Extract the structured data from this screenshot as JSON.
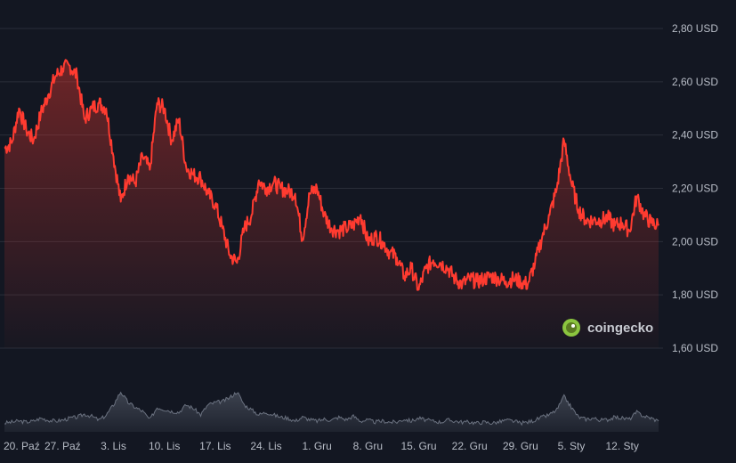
{
  "chart_data": {
    "type": "area",
    "title": "",
    "xlabel": "",
    "ylabel": "",
    "ylim": [
      1.58,
      2.85
    ],
    "y_ticks": [
      "2,80 USD",
      "2,60 USD",
      "2,40 USD",
      "2,20 USD",
      "2,00 USD",
      "1,80 USD",
      "1,60 USD"
    ],
    "y_tick_values": [
      2.8,
      2.6,
      2.4,
      2.2,
      2.0,
      1.8,
      1.6
    ],
    "x_ticks": [
      "20. Paź",
      "27. Paź",
      "3. Lis",
      "10. Lis",
      "17. Lis",
      "24. Lis",
      "1. Gru",
      "8. Gru",
      "15. Gru",
      "22. Gru",
      "29. Gru",
      "5. Sty",
      "12. Sty"
    ],
    "x_range_days": [
      -1,
      89
    ],
    "grid": true,
    "legend": "none",
    "series": [
      {
        "x": [
          -1,
          0,
          1,
          2,
          3,
          4,
          5,
          6,
          7,
          8,
          9,
          10,
          11,
          12,
          13,
          14,
          15,
          16,
          17,
          18,
          19,
          20,
          21,
          22,
          23,
          24,
          25,
          26,
          27,
          28,
          29,
          30,
          31,
          32,
          33,
          34,
          35,
          36,
          37,
          38,
          39,
          40,
          41,
          42,
          43,
          44,
          45,
          46,
          47,
          48,
          49,
          50,
          51,
          52,
          53,
          54,
          55,
          56,
          57,
          58,
          59,
          60,
          61,
          62,
          63,
          64,
          65,
          66,
          67,
          68,
          69,
          70,
          71,
          72,
          73,
          74,
          75,
          76,
          77,
          78,
          79,
          80,
          81,
          82,
          83,
          84,
          85,
          86,
          87,
          88,
          89
        ],
        "values": [
          2.35,
          2.37,
          2.5,
          2.42,
          2.38,
          2.48,
          2.55,
          2.62,
          2.65,
          2.66,
          2.62,
          2.46,
          2.5,
          2.52,
          2.5,
          2.32,
          2.15,
          2.25,
          2.22,
          2.32,
          2.27,
          2.52,
          2.5,
          2.38,
          2.46,
          2.28,
          2.25,
          2.24,
          2.18,
          2.14,
          2.05,
          1.95,
          1.92,
          2.05,
          2.1,
          2.23,
          2.2,
          2.22,
          2.2,
          2.19,
          2.18,
          2.01,
          2.18,
          2.2,
          2.1,
          2.05,
          2.04,
          2.05,
          2.06,
          2.1,
          2.0,
          2.02,
          2.0,
          1.96,
          1.94,
          1.87,
          1.9,
          1.82,
          1.9,
          1.93,
          1.92,
          1.9,
          1.86,
          1.84,
          1.86,
          1.85,
          1.86,
          1.87,
          1.86,
          1.85,
          1.86,
          1.85,
          1.84,
          1.92,
          2.02,
          2.1,
          2.2,
          2.38,
          2.22,
          2.12,
          2.08,
          2.08,
          2.08,
          2.09,
          2.06,
          2.07,
          2.04,
          2.17,
          2.1,
          2.07,
          2.06
        ],
        "color": "#ff3b30"
      }
    ],
    "volume": {
      "x": [
        -1,
        0,
        1,
        2,
        3,
        4,
        5,
        6,
        7,
        8,
        9,
        10,
        11,
        12,
        13,
        14,
        15,
        16,
        17,
        18,
        19,
        20,
        21,
        22,
        23,
        24,
        25,
        26,
        27,
        28,
        29,
        30,
        31,
        32,
        33,
        34,
        35,
        36,
        37,
        38,
        39,
        40,
        41,
        42,
        43,
        44,
        45,
        46,
        47,
        48,
        49,
        50,
        51,
        52,
        53,
        54,
        55,
        56,
        57,
        58,
        59,
        60,
        61,
        62,
        63,
        64,
        65,
        66,
        67,
        68,
        69,
        70,
        71,
        72,
        73,
        74,
        75,
        76,
        77,
        78,
        79,
        80,
        81,
        82,
        83,
        84,
        85,
        86,
        87,
        88,
        89
      ],
      "values": [
        0.18,
        0.2,
        0.22,
        0.2,
        0.22,
        0.28,
        0.24,
        0.22,
        0.24,
        0.28,
        0.3,
        0.36,
        0.32,
        0.24,
        0.34,
        0.55,
        0.82,
        0.6,
        0.5,
        0.42,
        0.25,
        0.5,
        0.46,
        0.42,
        0.4,
        0.55,
        0.48,
        0.35,
        0.55,
        0.6,
        0.62,
        0.7,
        0.82,
        0.55,
        0.45,
        0.35,
        0.4,
        0.35,
        0.3,
        0.28,
        0.22,
        0.3,
        0.25,
        0.22,
        0.26,
        0.24,
        0.3,
        0.25,
        0.32,
        0.22,
        0.24,
        0.2,
        0.22,
        0.2,
        0.2,
        0.26,
        0.22,
        0.28,
        0.24,
        0.22,
        0.2,
        0.24,
        0.22,
        0.2,
        0.2,
        0.18,
        0.2,
        0.18,
        0.2,
        0.24,
        0.22,
        0.18,
        0.2,
        0.24,
        0.3,
        0.35,
        0.45,
        0.72,
        0.5,
        0.3,
        0.26,
        0.28,
        0.24,
        0.25,
        0.3,
        0.28,
        0.26,
        0.4,
        0.32,
        0.28,
        0.22
      ],
      "color": "#5e6573"
    }
  },
  "watermark": {
    "brand": "coingecko",
    "logo_icon": "gecko-logo-icon"
  },
  "colors": {
    "background": "#131722",
    "line": "#ff3b30",
    "area_top": "#ff3b30",
    "grid": "#2a2e39",
    "volume": "#5e6573"
  }
}
